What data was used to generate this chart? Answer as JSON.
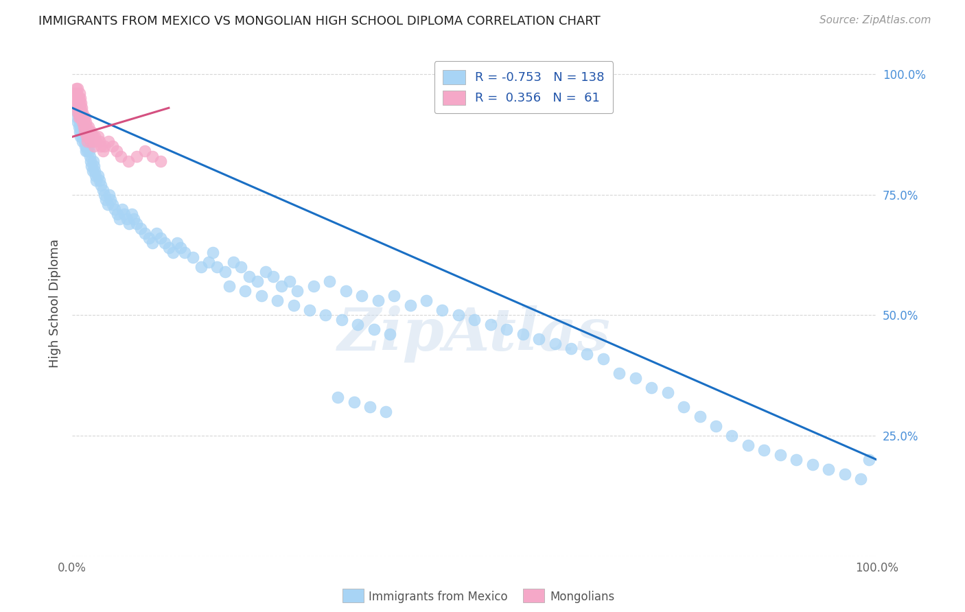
{
  "title": "IMMIGRANTS FROM MEXICO VS MONGOLIAN HIGH SCHOOL DIPLOMA CORRELATION CHART",
  "source": "Source: ZipAtlas.com",
  "ylabel": "High School Diploma",
  "legend_blue_r": "-0.753",
  "legend_blue_n": "138",
  "legend_pink_r": "0.356",
  "legend_pink_n": "61",
  "legend_blue_label": "Immigrants from Mexico",
  "legend_pink_label": "Mongolians",
  "blue_color": "#a8d4f5",
  "blue_line_color": "#1a6fc4",
  "pink_color": "#f5a8c8",
  "pink_line_color": "#d45080",
  "blue_scatter_x": [
    0.005,
    0.006,
    0.007,
    0.007,
    0.008,
    0.008,
    0.009,
    0.009,
    0.01,
    0.01,
    0.011,
    0.011,
    0.012,
    0.012,
    0.013,
    0.013,
    0.014,
    0.014,
    0.015,
    0.015,
    0.016,
    0.016,
    0.017,
    0.017,
    0.018,
    0.018,
    0.019,
    0.019,
    0.02,
    0.02,
    0.021,
    0.022,
    0.023,
    0.024,
    0.025,
    0.026,
    0.027,
    0.028,
    0.029,
    0.03,
    0.032,
    0.034,
    0.036,
    0.038,
    0.04,
    0.042,
    0.044,
    0.046,
    0.048,
    0.05,
    0.053,
    0.056,
    0.059,
    0.062,
    0.065,
    0.068,
    0.071,
    0.074,
    0.077,
    0.08,
    0.085,
    0.09,
    0.095,
    0.1,
    0.105,
    0.11,
    0.115,
    0.12,
    0.125,
    0.13,
    0.135,
    0.14,
    0.15,
    0.16,
    0.17,
    0.18,
    0.19,
    0.2,
    0.21,
    0.22,
    0.23,
    0.24,
    0.25,
    0.26,
    0.27,
    0.28,
    0.3,
    0.32,
    0.34,
    0.36,
    0.38,
    0.4,
    0.42,
    0.44,
    0.46,
    0.48,
    0.5,
    0.52,
    0.54,
    0.56,
    0.58,
    0.6,
    0.62,
    0.64,
    0.66,
    0.68,
    0.7,
    0.72,
    0.74,
    0.76,
    0.78,
    0.8,
    0.82,
    0.84,
    0.86,
    0.88,
    0.9,
    0.92,
    0.94,
    0.96,
    0.98,
    0.99,
    0.175,
    0.195,
    0.215,
    0.235,
    0.255,
    0.275,
    0.295,
    0.315,
    0.335,
    0.355,
    0.375,
    0.395,
    0.33,
    0.35,
    0.37,
    0.39
  ],
  "blue_scatter_y": [
    0.93,
    0.91,
    0.9,
    0.92,
    0.89,
    0.91,
    0.88,
    0.9,
    0.87,
    0.89,
    0.88,
    0.9,
    0.87,
    0.89,
    0.86,
    0.88,
    0.87,
    0.89,
    0.86,
    0.88,
    0.85,
    0.87,
    0.84,
    0.86,
    0.85,
    0.87,
    0.84,
    0.86,
    0.85,
    0.87,
    0.84,
    0.83,
    0.82,
    0.81,
    0.8,
    0.82,
    0.81,
    0.8,
    0.79,
    0.78,
    0.79,
    0.78,
    0.77,
    0.76,
    0.75,
    0.74,
    0.73,
    0.75,
    0.74,
    0.73,
    0.72,
    0.71,
    0.7,
    0.72,
    0.71,
    0.7,
    0.69,
    0.71,
    0.7,
    0.69,
    0.68,
    0.67,
    0.66,
    0.65,
    0.67,
    0.66,
    0.65,
    0.64,
    0.63,
    0.65,
    0.64,
    0.63,
    0.62,
    0.6,
    0.61,
    0.6,
    0.59,
    0.61,
    0.6,
    0.58,
    0.57,
    0.59,
    0.58,
    0.56,
    0.57,
    0.55,
    0.56,
    0.57,
    0.55,
    0.54,
    0.53,
    0.54,
    0.52,
    0.53,
    0.51,
    0.5,
    0.49,
    0.48,
    0.47,
    0.46,
    0.45,
    0.44,
    0.43,
    0.42,
    0.41,
    0.38,
    0.37,
    0.35,
    0.34,
    0.31,
    0.29,
    0.27,
    0.25,
    0.23,
    0.22,
    0.21,
    0.2,
    0.19,
    0.18,
    0.17,
    0.16,
    0.2,
    0.63,
    0.56,
    0.55,
    0.54,
    0.53,
    0.52,
    0.51,
    0.5,
    0.49,
    0.48,
    0.47,
    0.46,
    0.33,
    0.32,
    0.31,
    0.3
  ],
  "pink_scatter_x": [
    0.003,
    0.004,
    0.005,
    0.005,
    0.006,
    0.006,
    0.007,
    0.007,
    0.007,
    0.008,
    0.008,
    0.008,
    0.009,
    0.009,
    0.009,
    0.01,
    0.01,
    0.01,
    0.011,
    0.011,
    0.012,
    0.012,
    0.013,
    0.013,
    0.014,
    0.014,
    0.015,
    0.015,
    0.016,
    0.016,
    0.017,
    0.017,
    0.018,
    0.018,
    0.019,
    0.019,
    0.02,
    0.02,
    0.021,
    0.022,
    0.023,
    0.024,
    0.025,
    0.026,
    0.027,
    0.028,
    0.03,
    0.032,
    0.034,
    0.036,
    0.038,
    0.04,
    0.045,
    0.05,
    0.055,
    0.06,
    0.07,
    0.08,
    0.09,
    0.1,
    0.11
  ],
  "pink_scatter_y": [
    0.96,
    0.95,
    0.94,
    0.97,
    0.93,
    0.96,
    0.94,
    0.92,
    0.97,
    0.95,
    0.93,
    0.91,
    0.96,
    0.94,
    0.92,
    0.95,
    0.93,
    0.91,
    0.94,
    0.92,
    0.93,
    0.91,
    0.92,
    0.9,
    0.91,
    0.89,
    0.9,
    0.88,
    0.91,
    0.89,
    0.9,
    0.88,
    0.89,
    0.87,
    0.88,
    0.86,
    0.87,
    0.89,
    0.88,
    0.87,
    0.86,
    0.88,
    0.87,
    0.86,
    0.85,
    0.87,
    0.86,
    0.87,
    0.86,
    0.85,
    0.84,
    0.85,
    0.86,
    0.85,
    0.84,
    0.83,
    0.82,
    0.83,
    0.84,
    0.83,
    0.82
  ],
  "blue_line_x": [
    0.0,
    1.0
  ],
  "blue_line_y": [
    0.93,
    0.2
  ],
  "pink_line_x": [
    0.0,
    0.12
  ],
  "pink_line_y": [
    0.87,
    0.93
  ],
  "xlim": [
    0.0,
    1.0
  ],
  "ylim": [
    0.0,
    1.05
  ],
  "watermark_text": "ZipAtlas"
}
